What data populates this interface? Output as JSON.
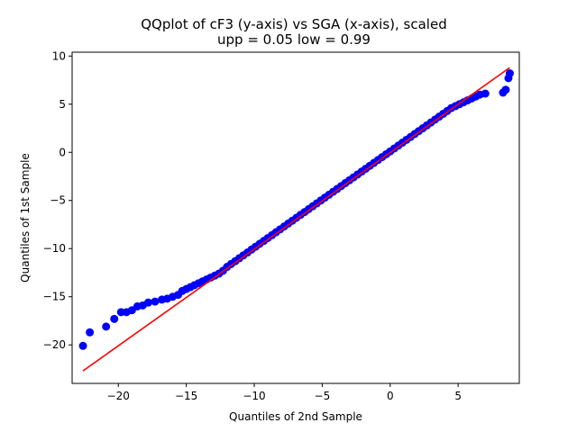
{
  "chart_data": {
    "type": "scatter",
    "title": "QQplot of cF3 (y-axis) vs SGA (x-axis), scaled",
    "subtitle": "upp = 0.05 low = 0.99",
    "xlabel": "Quantiles of 2nd Sample",
    "ylabel": "Quantiles of 1st Sample",
    "xlim": [
      -23.4,
      9.5
    ],
    "ylim": [
      -24.0,
      10.4
    ],
    "xticks": [
      -20,
      -15,
      -10,
      -5,
      0,
      5
    ],
    "yticks": [
      -20,
      -15,
      -10,
      -5,
      0,
      5,
      10
    ],
    "x_tick_labels": [
      "−20",
      "−15",
      "−10",
      "−5",
      "0",
      "5"
    ],
    "y_tick_labels": [
      "−20",
      "−15",
      "−10",
      "−5",
      "0",
      "5",
      "10"
    ],
    "grid": false,
    "series": [
      {
        "kind": "scatter",
        "color": "#0000ff",
        "points": [
          [
            -22.6,
            -20.1
          ],
          [
            -22.1,
            -18.7
          ],
          [
            -20.9,
            -18.1
          ],
          [
            -20.3,
            -17.3
          ],
          [
            -19.8,
            -16.6
          ],
          [
            -19.4,
            -16.6
          ],
          [
            -19.0,
            -16.4
          ],
          [
            -18.6,
            -16.0
          ],
          [
            -18.2,
            -15.9
          ],
          [
            -17.8,
            -15.6
          ],
          [
            -17.3,
            -15.5
          ],
          [
            -16.8,
            -15.3
          ],
          [
            -16.4,
            -15.2
          ],
          [
            -16.0,
            -15.0
          ],
          [
            -15.6,
            -14.8
          ],
          [
            -15.3,
            -14.4
          ],
          [
            -15.0,
            -14.2
          ],
          [
            -14.7,
            -14.0
          ],
          [
            -14.4,
            -13.8
          ],
          [
            -14.1,
            -13.6
          ],
          [
            -13.8,
            -13.4
          ],
          [
            -13.5,
            -13.2
          ],
          [
            -13.2,
            -13.0
          ],
          [
            -12.9,
            -12.8
          ],
          [
            -12.6,
            -12.6
          ],
          [
            -12.3,
            -12.3
          ],
          [
            -12.0,
            -11.9
          ],
          [
            -11.7,
            -11.6
          ],
          [
            -11.4,
            -11.3
          ],
          [
            -11.1,
            -11.0
          ],
          [
            -10.8,
            -10.7
          ],
          [
            -10.5,
            -10.4
          ],
          [
            -10.2,
            -10.1
          ],
          [
            -9.9,
            -9.8
          ],
          [
            -9.6,
            -9.5
          ],
          [
            -9.3,
            -9.2
          ],
          [
            -9.0,
            -8.9
          ],
          [
            -8.7,
            -8.6
          ],
          [
            -8.4,
            -8.3
          ],
          [
            -8.1,
            -8.0
          ],
          [
            -7.8,
            -7.7
          ],
          [
            -7.5,
            -7.4
          ],
          [
            -7.2,
            -7.1
          ],
          [
            -6.9,
            -6.8
          ],
          [
            -6.6,
            -6.5
          ],
          [
            -6.3,
            -6.2
          ],
          [
            -6.0,
            -5.9
          ],
          [
            -5.7,
            -5.6
          ],
          [
            -5.4,
            -5.3
          ],
          [
            -5.1,
            -5.0
          ],
          [
            -4.8,
            -4.7
          ],
          [
            -4.5,
            -4.4
          ],
          [
            -4.2,
            -4.1
          ],
          [
            -3.9,
            -3.8
          ],
          [
            -3.6,
            -3.5
          ],
          [
            -3.3,
            -3.2
          ],
          [
            -3.0,
            -2.9
          ],
          [
            -2.7,
            -2.6
          ],
          [
            -2.4,
            -2.3
          ],
          [
            -2.1,
            -2.0
          ],
          [
            -1.8,
            -1.7
          ],
          [
            -1.5,
            -1.4
          ],
          [
            -1.2,
            -1.1
          ],
          [
            -0.9,
            -0.8
          ],
          [
            -0.6,
            -0.5
          ],
          [
            -0.3,
            -0.2
          ],
          [
            0.0,
            0.1
          ],
          [
            0.3,
            0.4
          ],
          [
            0.6,
            0.7
          ],
          [
            0.9,
            1.0
          ],
          [
            1.2,
            1.3
          ],
          [
            1.5,
            1.6
          ],
          [
            1.8,
            1.9
          ],
          [
            2.1,
            2.2
          ],
          [
            2.4,
            2.5
          ],
          [
            2.7,
            2.8
          ],
          [
            3.0,
            3.1
          ],
          [
            3.3,
            3.4
          ],
          [
            3.6,
            3.7
          ],
          [
            3.9,
            4.0
          ],
          [
            4.2,
            4.3
          ],
          [
            4.5,
            4.6
          ],
          [
            4.8,
            4.8
          ],
          [
            5.1,
            5.0
          ],
          [
            5.4,
            5.2
          ],
          [
            5.7,
            5.4
          ],
          [
            6.0,
            5.6
          ],
          [
            6.3,
            5.8
          ],
          [
            6.6,
            6.0
          ],
          [
            7.0,
            6.1
          ],
          [
            8.3,
            6.2
          ],
          [
            8.5,
            6.5
          ],
          [
            8.7,
            7.7
          ],
          [
            8.8,
            8.2
          ]
        ]
      },
      {
        "kind": "line",
        "color": "#ff0000",
        "points": [
          [
            -22.6,
            -22.7
          ],
          [
            8.8,
            8.8
          ]
        ]
      }
    ]
  }
}
